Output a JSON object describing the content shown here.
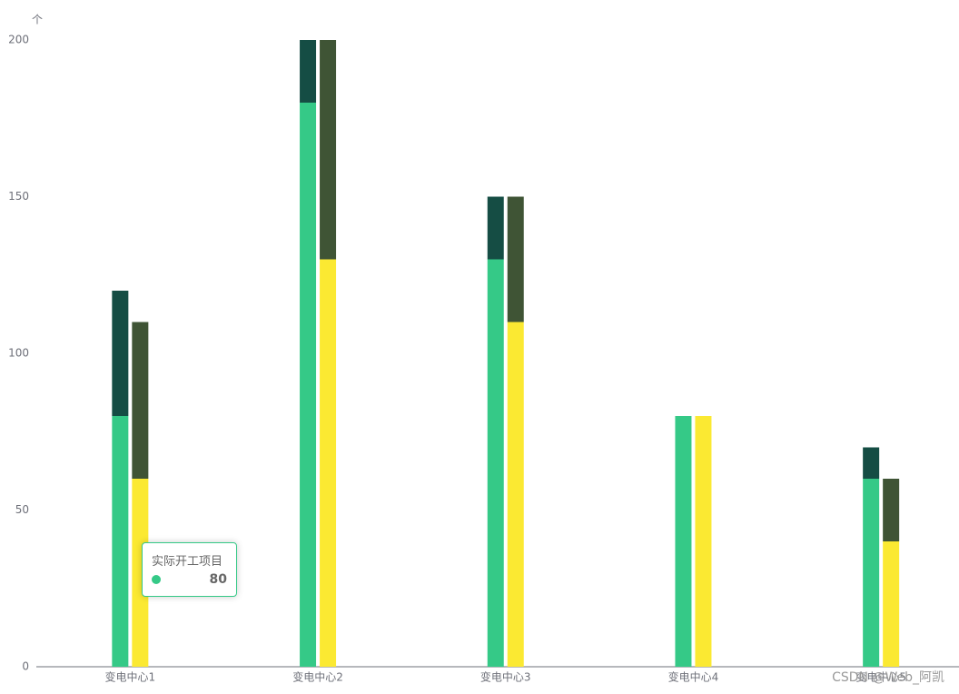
{
  "chart_data": {
    "type": "bar",
    "y_unit": "个",
    "categories": [
      "变电中心1",
      "变电中心2",
      "变电中心3",
      "变电中心4",
      "变电中心5"
    ],
    "series": [
      {
        "name": "实际开工项目",
        "color": "#35c987",
        "stack": "a",
        "values": [
          80,
          180,
          130,
          80,
          60
        ]
      },
      {
        "color": "#154d44",
        "stack": "a",
        "values": [
          40,
          20,
          20,
          0,
          10
        ]
      },
      {
        "color": "#fbe932",
        "stack": "b",
        "values": [
          60,
          130,
          110,
          80,
          40
        ]
      },
      {
        "color": "#3f5435",
        "stack": "b",
        "values": [
          50,
          70,
          40,
          0,
          20
        ]
      }
    ],
    "ylim": [
      0,
      200
    ],
    "yticks": [
      0,
      50,
      100,
      150,
      200
    ],
    "grid": false,
    "tooltip": {
      "series": 0,
      "index": 0
    },
    "watermark": "CSDN @Web_阿凯"
  }
}
